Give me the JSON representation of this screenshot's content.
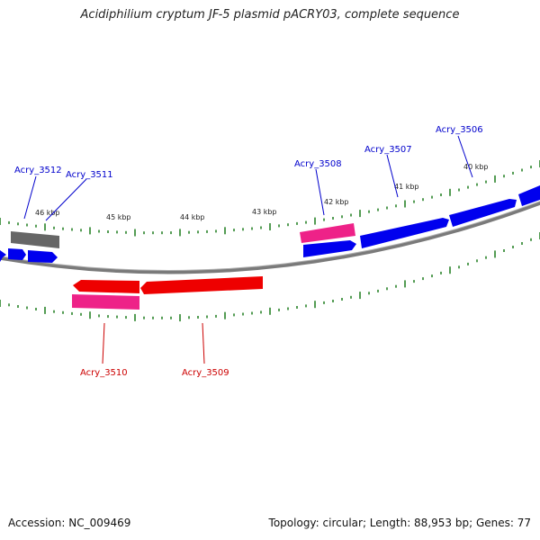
{
  "title": "Acidiphilium cryptum JF-5 plasmid pACRY03, complete sequence",
  "footer": {
    "accession": "Accession: NC_009469",
    "summary": "Topology: circular; Length: 88,953 bp; Genes: 77"
  },
  "colors": {
    "forward_cds": "#0000ee",
    "reverse_cds": "#ee0000",
    "pink_feature": "#ee2288",
    "gray_feature": "#666666",
    "backbone": "#7a7a7a",
    "tick": "#1a7a1a",
    "forward_label": "#0000cc",
    "reverse_label": "#cc0000"
  },
  "scale_labels": [
    "46 kbp",
    "45 kbp",
    "44 kbp",
    "43 kbp",
    "42 kbp",
    "41 kbp",
    "40 kbp"
  ],
  "gene_labels": {
    "acry_3512": "Acry_3512",
    "acry_3511": "Acry_3511",
    "acry_3508": "Acry_3508",
    "acry_3507": "Acry_3507",
    "acry_3506": "Acry_3506",
    "acry_3510": "Acry_3510",
    "acry_3509": "Acry_3509"
  }
}
